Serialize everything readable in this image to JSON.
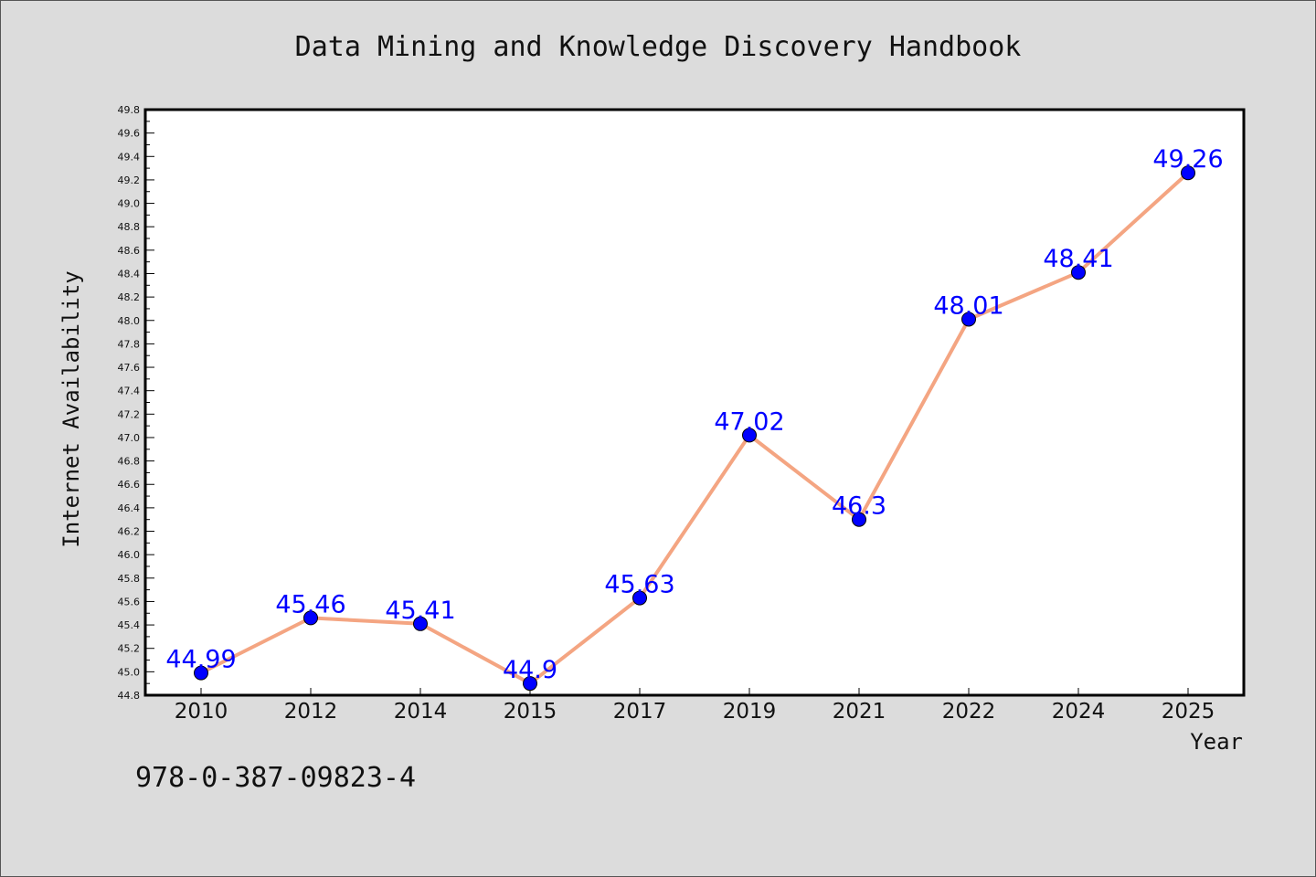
{
  "chart_data": {
    "type": "line",
    "title": "Data Mining and Knowledge Discovery Handbook",
    "xlabel": "Year",
    "ylabel": "Internet Availability",
    "categories": [
      "2010",
      "2012",
      "2014",
      "2015",
      "2017",
      "2019",
      "2021",
      "2022",
      "2024",
      "2025"
    ],
    "series": [
      {
        "values": [
          44.99,
          45.46,
          45.41,
          44.9,
          45.63,
          47.02,
          46.3,
          48.01,
          48.41,
          49.26
        ],
        "data_labels": [
          "44.99",
          "45.46",
          "45.41",
          "44.9",
          "45.63",
          "47.02",
          "46.3",
          "48.01",
          "48.41",
          "49.26"
        ]
      }
    ],
    "ylim": [
      44.8,
      49.8
    ],
    "ytick_step": 0.2,
    "grid": false,
    "colors": {
      "line": "#f4a582",
      "marker": "#0000ff",
      "data_label": "#0000ff",
      "plot_background": "#ffffff",
      "figure_background": "#dcdcdc"
    }
  },
  "footer": {
    "isbn": "978-0-387-09823-4"
  }
}
